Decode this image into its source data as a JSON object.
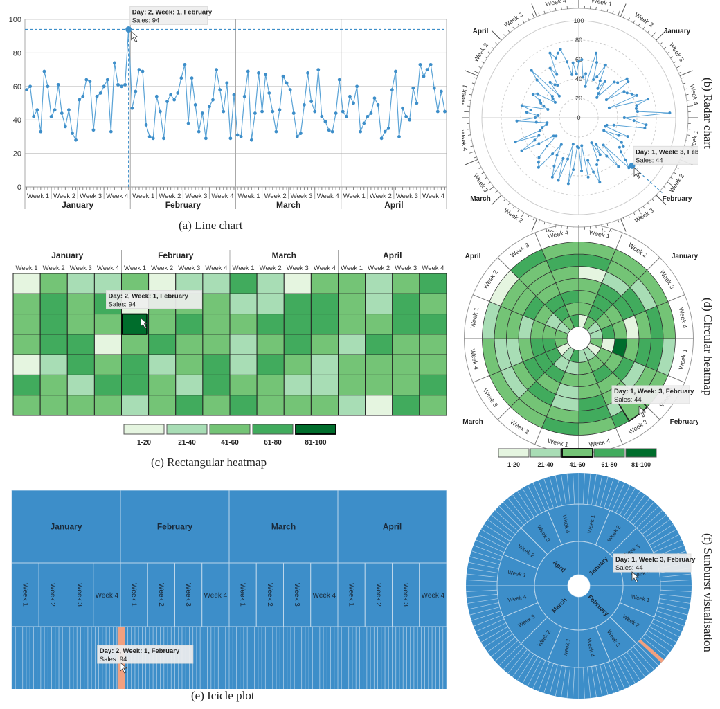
{
  "captions": {
    "a": "(a) Line chart",
    "b": "(b) Radar chart",
    "c": "(c) Rectangular heatmap",
    "d": "(d) Circular heatmap",
    "e": "(e) Icicle plot",
    "f": "(f) Sunburst visualisation"
  },
  "months": [
    "January",
    "February",
    "March",
    "April"
  ],
  "weeks": [
    "Week 1",
    "Week 2",
    "Week 3",
    "Week 4"
  ],
  "tooltip_a": {
    "line1": "Day: 2, Week: 1, February",
    "line2": "Sales: 94"
  },
  "tooltip_b": {
    "line1": "Day: 1, Week: 3, February",
    "line2": "Sales: 44"
  },
  "colors": {
    "blue": "#3d8ec9",
    "blue_dark": "#2f7fbf",
    "salmon": "#f2a07f",
    "grid": "#cccccc"
  },
  "green_scale": [
    "#e5f5e0",
    "#a8ddb5",
    "#74c476",
    "#41ab5d",
    "#006d2c"
  ],
  "chart_data": [
    {
      "type": "line",
      "caption": "(a) Line chart",
      "ylim": [
        0,
        100
      ],
      "yticks": [
        0,
        20,
        40,
        60,
        80,
        100
      ],
      "categories_months": [
        "January",
        "February",
        "March",
        "April"
      ],
      "categories_weeks": [
        "Week 1",
        "Week 2",
        "Week 3",
        "Week 4"
      ],
      "values": [
        58,
        60,
        42,
        46,
        33,
        69,
        60,
        42,
        46,
        61,
        44,
        36,
        46,
        32,
        28,
        52,
        54,
        64,
        63,
        34,
        54,
        56,
        60,
        64,
        33,
        74,
        61,
        60,
        61,
        94,
        47,
        57,
        70,
        69,
        37,
        30,
        29,
        54,
        45,
        29,
        51,
        55,
        52,
        56,
        65,
        73,
        38,
        65,
        49,
        33,
        44,
        29,
        48,
        52,
        70,
        58,
        45,
        62,
        29,
        55,
        31,
        30,
        54,
        69,
        28,
        44,
        68,
        45,
        67,
        56,
        45,
        33,
        46,
        66,
        62,
        58,
        44,
        30,
        32,
        49,
        68,
        51,
        45,
        70,
        42,
        39,
        34,
        33,
        44,
        64,
        45,
        42,
        54,
        50,
        60,
        33,
        38,
        42,
        44,
        53,
        49,
        29,
        33,
        35,
        58,
        69,
        30,
        47,
        42,
        40,
        59,
        50,
        73,
        66,
        70,
        73,
        59,
        45,
        57,
        45
      ],
      "highlight": {
        "index": 29,
        "value": 94,
        "label": "Day: 2, Week: 1, February",
        "sales": "Sales: 94"
      }
    },
    {
      "type": "radar",
      "caption": "(b) Radar chart",
      "rlim": [
        0,
        100
      ],
      "rticks": [
        0,
        20,
        40,
        60,
        80,
        100
      ],
      "highlight": {
        "value": 44,
        "label": "Day: 1, Week: 3, February",
        "sales": "Sales: 44"
      }
    },
    {
      "type": "heatmap",
      "caption": "(c) Rectangular heatmap",
      "rows": 7,
      "cols": 16,
      "values": [
        [
          15,
          55,
          30,
          25,
          55,
          20,
          40,
          35,
          75,
          30,
          20,
          50,
          60,
          30,
          55,
          80
        ],
        [
          50,
          75,
          45,
          80,
          15,
          60,
          45,
          55,
          30,
          25,
          70,
          65,
          50,
          35,
          75,
          50
        ],
        [
          60,
          80,
          55,
          45,
          94,
          55,
          75,
          60,
          55,
          70,
          80,
          75,
          55,
          60,
          70,
          80
        ],
        [
          55,
          70,
          65,
          20,
          55,
          65,
          60,
          45,
          25,
          55,
          70,
          60,
          25,
          75,
          55,
          60
        ],
        [
          20,
          35,
          70,
          60,
          70,
          25,
          55,
          65,
          35,
          70,
          60,
          35,
          55,
          60,
          55,
          55
        ],
        [
          75,
          55,
          30,
          70,
          65,
          45,
          30,
          70,
          60,
          50,
          30,
          40,
          60,
          50,
          45,
          75
        ],
        [
          60,
          45,
          55,
          45,
          25,
          55,
          65,
          50,
          75,
          60,
          50,
          55,
          40,
          20,
          70,
          50
        ]
      ],
      "legend": [
        "1-20",
        "21-40",
        "41-60",
        "61-80",
        "81-100"
      ],
      "highlight": {
        "row": 2,
        "col": 4,
        "label": "Day: 2, Week: 1, February",
        "sales": "Sales: 94"
      }
    },
    {
      "type": "circular-heatmap",
      "caption": "(d) Circular heatmap",
      "legend": [
        "1-20",
        "21-40",
        "41-60",
        "61-80",
        "81-100"
      ],
      "highlight": {
        "label": "Day: 1, Week: 3, February",
        "sales": "Sales: 44"
      }
    },
    {
      "type": "icicle",
      "caption": "(e) Icicle plot",
      "highlight": {
        "label": "Day: 2, Week: 1, February",
        "sales": "Sales: 94"
      }
    },
    {
      "type": "sunburst",
      "caption": "(f) Sunburst visualisation",
      "highlight": {
        "label": "Day: 1, Week: 3, February",
        "sales": "Sales: 44"
      }
    }
  ]
}
